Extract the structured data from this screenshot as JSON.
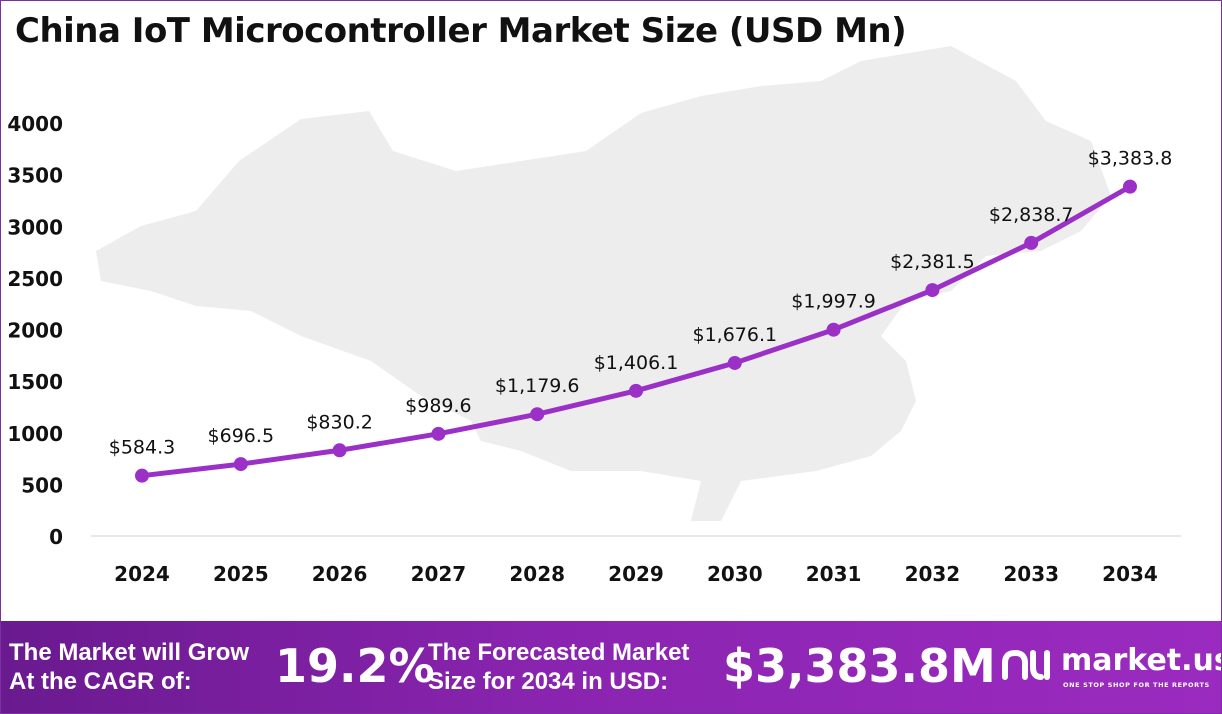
{
  "chart_data": {
    "type": "line",
    "title": "China IoT Microcontroller Market Size (USD Mn)",
    "categories": [
      "2024",
      "2025",
      "2026",
      "2027",
      "2028",
      "2029",
      "2030",
      "2031",
      "2032",
      "2033",
      "2034"
    ],
    "values": [
      584.3,
      696.5,
      830.2,
      989.6,
      1179.6,
      1406.1,
      1676.1,
      1997.9,
      2381.5,
      2838.7,
      3383.8
    ],
    "data_labels": [
      "$584.3",
      "$696.5",
      "$830.2",
      "$989.6",
      "$1,179.6",
      "$1,406.1",
      "$1,676.1",
      "$1,997.9",
      "$2,381.5",
      "$2,838.7",
      "$3,383.8"
    ],
    "y_ticks": [
      0,
      500,
      1000,
      1500,
      2000,
      2500,
      3000,
      3500,
      4000
    ],
    "ylim": [
      0,
      4000
    ],
    "grid": false,
    "legend": "none",
    "line_color": "#9b30c7",
    "background_map": "china-map-silhouette",
    "background_color": "#ededed"
  },
  "footer": {
    "cagr_label_line1": "The Market will Grow",
    "cagr_label_line2": "At the CAGR of:",
    "cagr_value": "19.2%",
    "forecast_label_line1": "The Forecasted Market",
    "forecast_label_line2": "Size for 2034 in USD:",
    "forecast_value": "$3,383.8M",
    "brand_name": "market.us",
    "brand_tagline": "ONE STOP SHOP FOR THE REPORTS",
    "brand_icon": "market-us-logo-icon"
  }
}
